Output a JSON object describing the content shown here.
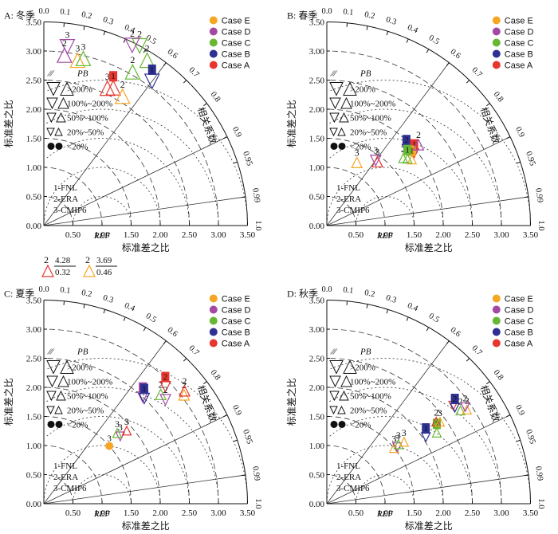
{
  "chart_data": [
    {
      "type": "scatter",
      "panel_label": "A: 冬季",
      "markers": [
        {
          "series": "Case D",
          "model": "3",
          "sd": 3.1,
          "corr": 0.13,
          "pb": ">200%",
          "dir": "down"
        },
        {
          "series": "Case D",
          "model": "2",
          "sd": 2.95,
          "corr": 0.12,
          "pb": ">200%",
          "dir": "up"
        },
        {
          "series": "Case E",
          "model": "3",
          "sd": 2.9,
          "corr": 0.2,
          "pb": ">200%",
          "dir": "up"
        },
        {
          "series": "Case C",
          "model": "3",
          "sd": 2.95,
          "corr": 0.23,
          "pb": ">200%",
          "dir": "up"
        },
        {
          "series": "Case C",
          "model": "2",
          "sd": 3.5,
          "corr": 0.47,
          "pb": ">200%",
          "dir": "down"
        },
        {
          "series": "Case D",
          "model": "2",
          "sd": 3.45,
          "corr": 0.44,
          "pb": ">200%",
          "dir": "down"
        },
        {
          "series": "Case C",
          "model": "2",
          "sd": 3.35,
          "corr": 0.53,
          "pb": ">200%",
          "dir": "up"
        },
        {
          "series": "Case C",
          "model": "2",
          "sd": 3.05,
          "corr": 0.5,
          "pb": ">200%",
          "dir": "up"
        },
        {
          "series": "Case B",
          "model": "1",
          "sd": 3.1,
          "corr": 0.6,
          "pb": ">200%",
          "dir": "down"
        },
        {
          "series": "Case A",
          "model": "3",
          "sd": 2.6,
          "corr": 0.42,
          "pb": ">200%",
          "dir": "up"
        },
        {
          "series": "Case A",
          "model": "1",
          "sd": 2.65,
          "corr": 0.45,
          "pb": ">200%",
          "dir": "up"
        },
        {
          "series": "Case E",
          "model": "2",
          "sd": 2.6,
          "corr": 0.52,
          "pb": ">200%",
          "dir": "up"
        }
      ]
    },
    {
      "type": "scatter",
      "panel_label": "B: 春季",
      "markers": [
        {
          "series": "Case E",
          "model": "3",
          "sd": 1.2,
          "corr": 0.43,
          "pb": "50%~100%",
          "dir": "up"
        },
        {
          "series": "Case A",
          "model": "3",
          "sd": 1.4,
          "corr": 0.62,
          "pb": "50%~100%",
          "dir": "up"
        },
        {
          "series": "Case D",
          "model": "3",
          "sd": 1.4,
          "corr": 0.6,
          "pb": "50%~100%",
          "dir": "down"
        },
        {
          "series": "Case B",
          "model": "2",
          "sd": 1.9,
          "corr": 0.72,
          "pb": "20%~50%",
          "dir": "down"
        },
        {
          "series": "Case C",
          "model": "2",
          "sd": 1.75,
          "corr": 0.75,
          "pb": "20%~50%",
          "dir": "up"
        },
        {
          "series": "Case A",
          "model": "1",
          "sd": 1.95,
          "corr": 0.77,
          "pb": "20%~50%",
          "dir": "down"
        },
        {
          "series": "Case E",
          "model": "1",
          "sd": 1.85,
          "corr": 0.79,
          "pb": "20%~50%",
          "dir": "up"
        },
        {
          "series": "Case C",
          "model": "1",
          "sd": 1.8,
          "corr": 0.77,
          "pb": "20%~50%",
          "dir": "up"
        },
        {
          "series": "Case D",
          "model": "2",
          "sd": 2.1,
          "corr": 0.75,
          "pb": "50%~100%",
          "dir": "up"
        }
      ]
    },
    {
      "type": "scatter",
      "panel_label": "C: 夏季",
      "markers": [
        {
          "series": "Case E",
          "model": "3",
          "sd": 1.5,
          "corr": 0.75,
          "pb": "<20%",
          "dir": "circle"
        },
        {
          "series": "Case D",
          "model": "3",
          "sd": 1.75,
          "corr": 0.75,
          "pb": "20%~50%",
          "dir": "down"
        },
        {
          "series": "Case C",
          "model": "3",
          "sd": 1.75,
          "corr": 0.72,
          "pb": "20%~50%",
          "dir": "up"
        },
        {
          "series": "Case A",
          "model": "3",
          "sd": 1.9,
          "corr": 0.75,
          "pb": "20%~50%",
          "dir": "up"
        },
        {
          "series": "Case D",
          "model": "1",
          "sd": 2.5,
          "corr": 0.68,
          "pb": "50%~100%",
          "dir": "down"
        },
        {
          "series": "Case B",
          "model": "1",
          "sd": 2.5,
          "corr": 0.69,
          "pb": "50%~100%",
          "dir": "down"
        },
        {
          "series": "Case C",
          "model": "2",
          "sd": 2.75,
          "corr": 0.73,
          "pb": "50%~100%",
          "dir": "up"
        },
        {
          "series": "Case A",
          "model": "2",
          "sd": 2.9,
          "corr": 0.72,
          "pb": "50%~100%",
          "dir": "down"
        },
        {
          "series": "Case D",
          "model": "2",
          "sd": 2.75,
          "corr": 0.76,
          "pb": "50%~100%",
          "dir": "down"
        },
        {
          "series": "Case E",
          "model": "2",
          "sd": 3.05,
          "corr": 0.79,
          "pb": "50%~100%",
          "dir": "up"
        },
        {
          "series": "Case A",
          "model": "2",
          "sd": 3.1,
          "corr": 0.78,
          "pb": "50%~100%",
          "dir": "up"
        }
      ]
    },
    {
      "type": "scatter",
      "panel_label": "D: 秋季",
      "markers": [
        {
          "series": "Case E",
          "model": "3",
          "sd": 1.5,
          "corr": 0.77,
          "pb": "20%~50%",
          "dir": "up"
        },
        {
          "series": "Case D",
          "model": "3",
          "sd": 1.55,
          "corr": 0.78,
          "pb": "20%~50%",
          "dir": "down"
        },
        {
          "series": "Case C",
          "model": "3",
          "sd": 1.6,
          "corr": 0.77,
          "pb": "20%~50%",
          "dir": "up"
        },
        {
          "series": "Case E",
          "model": "3",
          "sd": 1.7,
          "corr": 0.78,
          "pb": "20%~50%",
          "dir": "up"
        },
        {
          "series": "Case B",
          "model": "1",
          "sd": 2.05,
          "corr": 0.83,
          "pb": "20%~50%",
          "dir": "down"
        },
        {
          "series": "Case C",
          "model": "1",
          "sd": 2.25,
          "corr": 0.84,
          "pb": "20%~50%",
          "dir": "up"
        },
        {
          "series": "Case A",
          "model": "2",
          "sd": 2.35,
          "corr": 0.8,
          "pb": "20%~50%",
          "dir": "up"
        },
        {
          "series": "Case E",
          "model": "3",
          "sd": 2.4,
          "corr": 0.81,
          "pb": "20%~50%",
          "dir": "up"
        },
        {
          "series": "Case A",
          "model": "2",
          "sd": 2.75,
          "corr": 0.79,
          "pb": "20%~50%",
          "dir": "down"
        },
        {
          "series": "Case B",
          "model": "2",
          "sd": 2.75,
          "corr": 0.8,
          "pb": "20%~50%",
          "dir": "down"
        },
        {
          "series": "Case C",
          "model": "2",
          "sd": 2.8,
          "corr": 0.82,
          "pb": "20%~50%",
          "dir": "up"
        },
        {
          "series": "Case E",
          "model": "2",
          "sd": 2.9,
          "corr": 0.83,
          "pb": "20%~50%",
          "dir": "up"
        },
        {
          "series": "Case D",
          "model": "2",
          "sd": 2.9,
          "corr": 0.82,
          "pb": "20%~50%",
          "dir": "down"
        }
      ]
    }
  ],
  "common": {
    "xlabel": "标准差之比",
    "ylabel": "标准差之比",
    "corr_label": "相关系数",
    "x_ticks": [
      "0.50",
      "1.00",
      "1.50",
      "2.00",
      "2.50",
      "3.00",
      "3.50"
    ],
    "y_ticks": [
      "0.00",
      "0.50",
      "1.00",
      "1.50",
      "2.00",
      "2.50",
      "3.00",
      "3.50"
    ],
    "ref_label": "REF",
    "corr_ticks": [
      "0.0",
      "0.1",
      "0.2",
      "0.3",
      "0.4",
      "0.5",
      "0.6",
      "0.7",
      "0.8",
      "0.9",
      "0.95",
      "0.99",
      "1.0"
    ],
    "range": [
      0,
      3.5
    ],
    "legend": [
      {
        "name": "Case E",
        "color": "#F5A623"
      },
      {
        "name": "Case D",
        "color": "#A349A4"
      },
      {
        "name": "Case C",
        "color": "#66B832"
      },
      {
        "name": "Case B",
        "color": "#2E3192"
      },
      {
        "name": "Case A",
        "color": "#E8352E"
      }
    ],
    "pb_title": "PB",
    "pb_levels": [
      ">200%",
      "100%~200%",
      "50%~100%",
      "20%~50%",
      "<20%"
    ],
    "model_keys": [
      "1-FNL",
      "2-ERA",
      "3-CMIP6"
    ]
  },
  "outlier_note": [
    {
      "model": "2",
      "upper": "4.28",
      "lower": "0.32",
      "color": "#E8352E"
    },
    {
      "model": "2",
      "upper": "3.69",
      "lower": "0.46",
      "color": "#F5A623"
    }
  ]
}
